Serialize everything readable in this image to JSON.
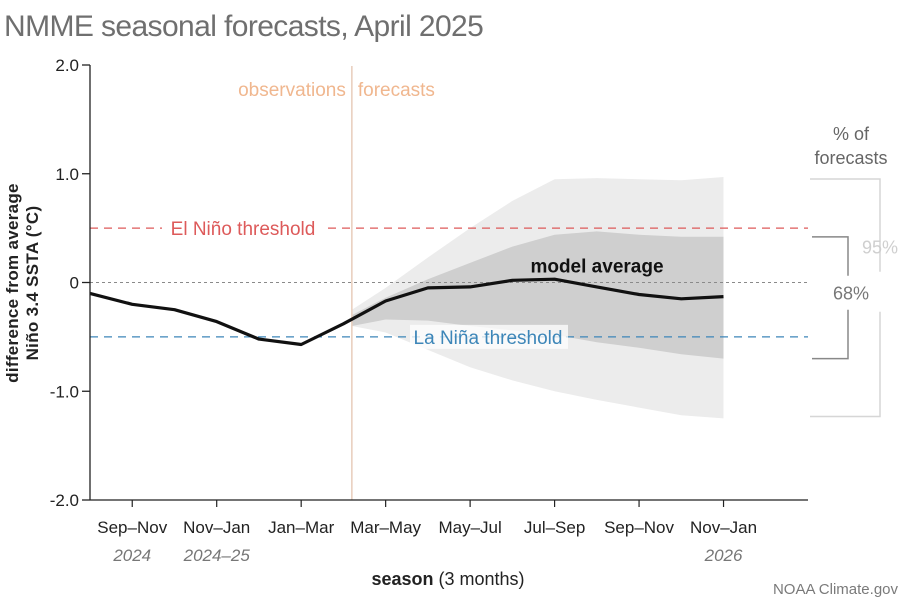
{
  "title": "NMME seasonal forecasts, April 2025",
  "credit": "NOAA Climate.gov",
  "colors": {
    "el_nino": "#dd5a5a",
    "la_nina": "#3d86b8",
    "obs_forecast_label": "#f0b78f",
    "band95": "#ececec",
    "band68": "#cfcfcf",
    "line": "#111111"
  },
  "chart_data": {
    "type": "line",
    "title": "NMME seasonal forecasts, April 2025",
    "ylabel_line1": "difference from average",
    "ylabel_line2": "Niño 3.4 SSTA (°C)",
    "xlabel_bold": "season",
    "xlabel_rest": " (3 months)",
    "ylim": [
      -2.0,
      2.0
    ],
    "yticks": [
      2.0,
      1.0,
      0,
      -1.0,
      -2.0
    ],
    "ytick_labels": [
      "2.0",
      "1.0",
      "0",
      "-1.0",
      "-2.0"
    ],
    "month_index_range": [
      0,
      17
    ],
    "seasons": [
      {
        "label": "Sep–Nov",
        "year": "2024",
        "mid": 1
      },
      {
        "label": "Nov–Jan",
        "year": "2024–25",
        "mid": 3
      },
      {
        "label": "Jan–Mar",
        "year": "",
        "mid": 5
      },
      {
        "label": "Mar–May",
        "year": "",
        "mid": 7
      },
      {
        "label": "May–Jul",
        "year": "",
        "mid": 9
      },
      {
        "label": "Jul–Sep",
        "year": "",
        "mid": 11
      },
      {
        "label": "Sep–Nov",
        "year": "",
        "mid": 13
      },
      {
        "label": "Nov–Jan",
        "year": "2026",
        "mid": 15
      }
    ],
    "divider_at": 6.2,
    "observations_label": "observations",
    "forecasts_label": "forecasts",
    "thresholds": [
      {
        "name": "El Niño threshold",
        "value": 0.5,
        "color": "#dd5a5a"
      },
      {
        "name": "La Niña threshold",
        "value": -0.5,
        "color": "#3d86b8"
      }
    ],
    "series": [
      {
        "name": "model average",
        "x": [
          0,
          1,
          2,
          3,
          4,
          5,
          6,
          7,
          8,
          9,
          10,
          11,
          12,
          13,
          14,
          15
        ],
        "values": [
          -0.1,
          -0.2,
          -0.25,
          -0.36,
          -0.52,
          -0.57,
          -0.38,
          -0.17,
          -0.05,
          -0.04,
          0.02,
          0.03,
          -0.04,
          -0.11,
          -0.15,
          -0.13
        ]
      }
    ],
    "band95": {
      "x": [
        6.2,
        7,
        8,
        9,
        10,
        11,
        12,
        13,
        14,
        15
      ],
      "upper": [
        -0.25,
        -0.05,
        0.23,
        0.5,
        0.75,
        0.95,
        0.96,
        0.95,
        0.94,
        0.97
      ],
      "lower": [
        -0.4,
        -0.46,
        -0.62,
        -0.78,
        -0.9,
        -1.0,
        -1.08,
        -1.15,
        -1.22,
        -1.25
      ]
    },
    "band68": {
      "x": [
        6.2,
        7,
        8,
        9,
        10,
        11,
        12,
        13,
        14,
        15
      ],
      "upper": [
        -0.3,
        -0.14,
        0.03,
        0.18,
        0.33,
        0.44,
        0.47,
        0.44,
        0.42,
        0.42
      ],
      "lower": [
        -0.4,
        -0.34,
        -0.35,
        -0.4,
        -0.44,
        -0.48,
        -0.55,
        -0.6,
        -0.66,
        -0.7
      ]
    },
    "legend": {
      "heading_line1": "% of",
      "heading_line2": "forecasts",
      "pct95": "95%",
      "pct68": "68%",
      "model_label": "model average"
    }
  }
}
